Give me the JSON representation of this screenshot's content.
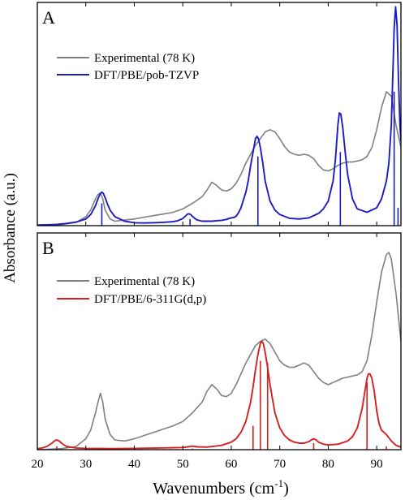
{
  "chart_data": [
    {
      "type": "line",
      "panel_label": "A",
      "xlim": [
        20,
        95
      ],
      "xticks": [
        20,
        30,
        40,
        50,
        60,
        70,
        80,
        90
      ],
      "ylim": [
        0,
        1.0
      ],
      "legend_position": "top-left",
      "series": [
        {
          "name": "Experimental (78 K)",
          "color": "#808080",
          "style": "line",
          "x": [
            20,
            25,
            28,
            30,
            31,
            32,
            32.5,
            33,
            33.5,
            34,
            35,
            36,
            38,
            40,
            42,
            44,
            46,
            48,
            50,
            52,
            54,
            55,
            56,
            57,
            58,
            59,
            60,
            61,
            62,
            63,
            64,
            65,
            66,
            67,
            68,
            69,
            70,
            71,
            72,
            73,
            74,
            75,
            76,
            77,
            78,
            79,
            80,
            81,
            82,
            83,
            84,
            85,
            86,
            87,
            88,
            89,
            90,
            91,
            92,
            93,
            94,
            95
          ],
          "y": [
            0.0,
            0.005,
            0.015,
            0.04,
            0.07,
            0.12,
            0.14,
            0.145,
            0.12,
            0.07,
            0.03,
            0.02,
            0.025,
            0.03,
            0.038,
            0.045,
            0.052,
            0.06,
            0.075,
            0.1,
            0.13,
            0.16,
            0.195,
            0.18,
            0.16,
            0.155,
            0.165,
            0.19,
            0.23,
            0.28,
            0.32,
            0.36,
            0.39,
            0.42,
            0.43,
            0.42,
            0.39,
            0.355,
            0.33,
            0.32,
            0.315,
            0.32,
            0.315,
            0.3,
            0.27,
            0.25,
            0.245,
            0.255,
            0.27,
            0.28,
            0.285,
            0.285,
            0.29,
            0.295,
            0.31,
            0.35,
            0.43,
            0.53,
            0.6,
            0.58,
            0.45,
            0.35
          ]
        },
        {
          "name": "DFT/PBE/pob-TZVP",
          "color": "#1c1cc4",
          "style": "line",
          "x": [
            20,
            22,
            24,
            26,
            28,
            30,
            31,
            32,
            32.5,
            33,
            33.3,
            33.6,
            34,
            34.5,
            35,
            36,
            38,
            40,
            42,
            44,
            46,
            48,
            49,
            50,
            50.5,
            51,
            51.3,
            51.6,
            52,
            52.5,
            53,
            54,
            56,
            58,
            59,
            59.5,
            60,
            60.3,
            60.6,
            61,
            61.5,
            62,
            63,
            63.5,
            64,
            64.5,
            65,
            65.3,
            65.6,
            66,
            66.5,
            67,
            68,
            69,
            70,
            72,
            74,
            76,
            78,
            79,
            80,
            81,
            81.5,
            82,
            82.3,
            82.6,
            83,
            83.5,
            84,
            85,
            86,
            88,
            90,
            91,
            92,
            92.5,
            93,
            93.3,
            93.6,
            93.9,
            94.2,
            94.5,
            94.8,
            95
          ],
          "y": [
            0.003,
            0.004,
            0.006,
            0.01,
            0.016,
            0.03,
            0.05,
            0.09,
            0.12,
            0.145,
            0.15,
            0.145,
            0.125,
            0.095,
            0.07,
            0.04,
            0.02,
            0.013,
            0.012,
            0.013,
            0.015,
            0.018,
            0.022,
            0.032,
            0.042,
            0.052,
            0.053,
            0.05,
            0.042,
            0.032,
            0.025,
            0.02,
            0.02,
            0.024,
            0.028,
            0.032,
            0.035,
            0.036,
            0.037,
            0.042,
            0.058,
            0.08,
            0.15,
            0.2,
            0.27,
            0.33,
            0.39,
            0.4,
            0.39,
            0.35,
            0.28,
            0.2,
            0.11,
            0.07,
            0.05,
            0.033,
            0.03,
            0.035,
            0.055,
            0.075,
            0.11,
            0.2,
            0.3,
            0.45,
            0.505,
            0.5,
            0.44,
            0.33,
            0.23,
            0.12,
            0.075,
            0.06,
            0.08,
            0.12,
            0.2,
            0.28,
            0.45,
            0.65,
            0.88,
            0.98,
            0.9,
            0.65,
            0.45,
            0.38
          ]
        },
        {
          "name": "DFT/PBE/pob-TZVP",
          "color": "#1c1cc4",
          "style": "sticks",
          "x": [
            33.3,
            51.5,
            65.5,
            82.5,
            93.6,
            94.4
          ],
          "y": [
            0.1,
            0.03,
            0.31,
            0.33,
            0.6,
            0.08
          ]
        }
      ]
    },
    {
      "type": "line",
      "panel_label": "B",
      "xlim": [
        20,
        95
      ],
      "xticks": [
        20,
        30,
        40,
        50,
        60,
        70,
        80,
        90
      ],
      "xtick_labels": [
        "20",
        "30",
        "40",
        "50",
        "60",
        "70",
        "80",
        "90"
      ],
      "ylim": [
        0,
        1.0
      ],
      "legend_position": "top-left",
      "series": [
        {
          "name": "Experimental (78 K)",
          "color": "#808080",
          "style": "line",
          "x": [
            20,
            25,
            28,
            30,
            31,
            32,
            32.5,
            33,
            33.5,
            34,
            35,
            36,
            38,
            40,
            42,
            44,
            46,
            48,
            50,
            52,
            54,
            55,
            56,
            57,
            58,
            59,
            60,
            61,
            62,
            63,
            64,
            65,
            66,
            67,
            68,
            69,
            70,
            71,
            72,
            73,
            74,
            75,
            76,
            77,
            78,
            79,
            80,
            81,
            82,
            83,
            84,
            85,
            86,
            87,
            88,
            89,
            90,
            91,
            92,
            92.5,
            93,
            94,
            95
          ],
          "y": [
            0.0,
            0.005,
            0.015,
            0.05,
            0.09,
            0.17,
            0.22,
            0.26,
            0.22,
            0.14,
            0.07,
            0.045,
            0.04,
            0.05,
            0.065,
            0.08,
            0.095,
            0.11,
            0.13,
            0.17,
            0.22,
            0.27,
            0.3,
            0.28,
            0.25,
            0.245,
            0.26,
            0.3,
            0.35,
            0.4,
            0.44,
            0.48,
            0.5,
            0.51,
            0.49,
            0.45,
            0.41,
            0.39,
            0.38,
            0.38,
            0.39,
            0.4,
            0.39,
            0.36,
            0.33,
            0.31,
            0.3,
            0.31,
            0.32,
            0.33,
            0.335,
            0.34,
            0.345,
            0.36,
            0.41,
            0.53,
            0.68,
            0.82,
            0.9,
            0.91,
            0.88,
            0.72,
            0.5
          ]
        },
        {
          "name": "DFT/PBE/6-311G(d,p)",
          "color": "#d42020",
          "style": "line",
          "x": [
            20,
            21,
            22,
            23,
            23.5,
            24,
            24.5,
            25,
            26,
            28,
            30,
            35,
            40,
            45,
            50,
            51,
            52,
            53,
            55,
            58,
            60,
            61,
            62,
            63,
            64,
            64.5,
            65,
            65.5,
            66,
            66.3,
            66.6,
            67,
            67.5,
            68,
            69,
            70,
            71,
            72,
            73,
            74,
            75,
            76,
            76.5,
            77,
            77.5,
            78,
            79,
            80,
            82,
            84,
            85,
            86,
            87,
            87.5,
            88,
            88.3,
            88.6,
            89,
            89.5,
            90,
            90.5,
            91,
            92,
            93,
            94,
            95
          ],
          "y": [
            0.005,
            0.008,
            0.015,
            0.03,
            0.04,
            0.045,
            0.04,
            0.03,
            0.015,
            0.008,
            0.006,
            0.005,
            0.006,
            0.008,
            0.01,
            0.013,
            0.016,
            0.013,
            0.012,
            0.02,
            0.035,
            0.05,
            0.08,
            0.13,
            0.22,
            0.29,
            0.37,
            0.44,
            0.49,
            0.5,
            0.49,
            0.45,
            0.38,
            0.3,
            0.17,
            0.1,
            0.065,
            0.045,
            0.035,
            0.03,
            0.03,
            0.037,
            0.045,
            0.05,
            0.045,
            0.035,
            0.025,
            0.022,
            0.025,
            0.04,
            0.06,
            0.1,
            0.19,
            0.26,
            0.33,
            0.35,
            0.35,
            0.33,
            0.27,
            0.18,
            0.12,
            0.09,
            0.07,
            0.04,
            0.02,
            0.012
          ]
        },
        {
          "name": "DFT/PBE/6-311G(d,p)",
          "color": "#d42020",
          "style": "sticks",
          "x": [
            24,
            52,
            64.5,
            66,
            67.5,
            77,
            88,
            92
          ],
          "y": [
            0.015,
            0.005,
            0.11,
            0.41,
            0.4,
            0.03,
            0.31,
            0.015
          ]
        }
      ]
    }
  ],
  "shared_axes": {
    "xlabel": "Wavenumbers (cm",
    "xlabel_superscript": "-1",
    "xlabel_suffix": ")",
    "ylabel": "Absorbance (a.u.)"
  }
}
